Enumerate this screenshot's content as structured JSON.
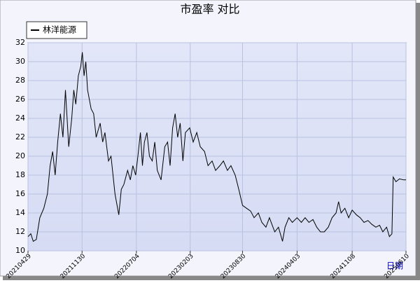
{
  "chart_data": {
    "type": "line",
    "title": "市盈率  对比",
    "x_label": "日期",
    "x": [
      "2021-04-29",
      "2021-05-10",
      "2021-05-20",
      "2021-06-01",
      "2021-06-15",
      "2021-07-01",
      "2021-07-15",
      "2021-07-26",
      "2021-08-05",
      "2021-08-15",
      "2021-08-25",
      "2021-09-05",
      "2021-09-15",
      "2021-09-25",
      "2021-10-08",
      "2021-10-20",
      "2021-10-28",
      "2021-11-05",
      "2021-11-15",
      "2021-11-25",
      "2021-12-01",
      "2021-12-08",
      "2021-12-15",
      "2021-12-22",
      "2022-01-05",
      "2022-01-15",
      "2022-01-25",
      "2022-02-10",
      "2022-02-20",
      "2022-03-01",
      "2022-03-15",
      "2022-03-25",
      "2022-04-10",
      "2022-04-25",
      "2022-05-05",
      "2022-05-15",
      "2022-05-30",
      "2022-06-10",
      "2022-06-20",
      "2022-07-01",
      "2022-07-10",
      "2022-07-20",
      "2022-07-28",
      "2022-08-05",
      "2022-08-15",
      "2022-08-25",
      "2022-09-05",
      "2022-09-15",
      "2022-09-25",
      "2022-10-10",
      "2022-10-25",
      "2022-11-05",
      "2022-11-15",
      "2022-11-25",
      "2022-12-05",
      "2022-12-15",
      "2022-12-25",
      "2023-01-05",
      "2023-01-15",
      "2023-02-01",
      "2023-02-15",
      "2023-03-01",
      "2023-03-15",
      "2023-04-01",
      "2023-04-15",
      "2023-05-01",
      "2023-05-15",
      "2023-06-01",
      "2023-06-15",
      "2023-07-01",
      "2023-07-15",
      "2023-08-01",
      "2023-08-15",
      "2023-08-30",
      "2023-09-15",
      "2023-10-01",
      "2023-10-15",
      "2023-11-01",
      "2023-11-15",
      "2023-12-01",
      "2023-12-15",
      "2024-01-05",
      "2024-01-20",
      "2024-02-05",
      "2024-02-15",
      "2024-03-01",
      "2024-03-15",
      "2024-04-03",
      "2024-04-20",
      "2024-05-05",
      "2024-05-20",
      "2024-06-05",
      "2024-06-20",
      "2024-07-05",
      "2024-07-20",
      "2024-08-05",
      "2024-08-20",
      "2024-09-05",
      "2024-09-15",
      "2024-09-25",
      "2024-10-10",
      "2024-10-25",
      "2024-11-08",
      "2024-11-25",
      "2024-12-10",
      "2024-12-25",
      "2025-01-10",
      "2025-01-25",
      "2025-02-10",
      "2025-02-25",
      "2025-03-10",
      "2025-03-25",
      "2025-04-05",
      "2025-04-15",
      "2025-04-20",
      "2025-05-01",
      "2025-05-15",
      "2025-06-01",
      "2025-06-10"
    ],
    "series": [
      {
        "name": "林洋能源",
        "color": "#000000",
        "values": [
          11.5,
          11.8,
          11.0,
          11.2,
          13.5,
          14.5,
          16.0,
          19.0,
          20.5,
          18.0,
          21.5,
          24.5,
          22.0,
          27.0,
          21.0,
          24.0,
          27.0,
          25.5,
          28.5,
          29.5,
          31.0,
          28.5,
          30.0,
          27.0,
          25.0,
          24.5,
          22.0,
          23.5,
          21.5,
          22.5,
          19.5,
          20.0,
          16.0,
          13.8,
          16.5,
          17.0,
          18.5,
          17.5,
          19.0,
          18.0,
          20.0,
          22.5,
          19.0,
          21.5,
          22.5,
          20.0,
          19.5,
          21.5,
          18.5,
          17.5,
          21.0,
          21.5,
          19.0,
          23.0,
          24.5,
          22.0,
          23.5,
          19.5,
          22.5,
          23.0,
          21.5,
          22.5,
          21.0,
          20.5,
          19.0,
          19.5,
          18.5,
          19.0,
          19.5,
          18.5,
          19.0,
          18.0,
          16.5,
          14.8,
          14.5,
          14.2,
          13.5,
          14.0,
          13.0,
          12.5,
          13.5,
          12.0,
          12.5,
          11.0,
          12.5,
          13.5,
          13.0,
          13.5,
          13.0,
          13.5,
          13.0,
          13.3,
          12.5,
          12.0,
          12.0,
          12.5,
          13.5,
          14.0,
          15.2,
          14.0,
          14.5,
          13.5,
          14.3,
          13.8,
          13.5,
          13.0,
          13.2,
          12.8,
          12.5,
          12.7,
          12.0,
          12.5,
          11.5,
          11.8,
          17.8,
          17.3,
          17.6,
          17.5,
          17.5
        ]
      }
    ],
    "xlim": [
      "2021-04-29",
      "2025-06-10"
    ],
    "xticks": [
      {
        "value": "2021-04-29",
        "label": "20210429"
      },
      {
        "value": "2021-11-30",
        "label": "20211130"
      },
      {
        "value": "2022-07-04",
        "label": "20220704"
      },
      {
        "value": "2023-02-03",
        "label": "20230203"
      },
      {
        "value": "2023-08-30",
        "label": "20230830"
      },
      {
        "value": "2024-04-03",
        "label": "20240403"
      },
      {
        "value": "2024-11-08",
        "label": "20241108"
      },
      {
        "value": "2025-06-10",
        "label": "20250610"
      }
    ],
    "ylim": [
      10,
      32
    ],
    "yticks": [
      10,
      12,
      14,
      16,
      18,
      20,
      22,
      24,
      26,
      28,
      30,
      32
    ],
    "grid": true,
    "legend": "top-left"
  }
}
